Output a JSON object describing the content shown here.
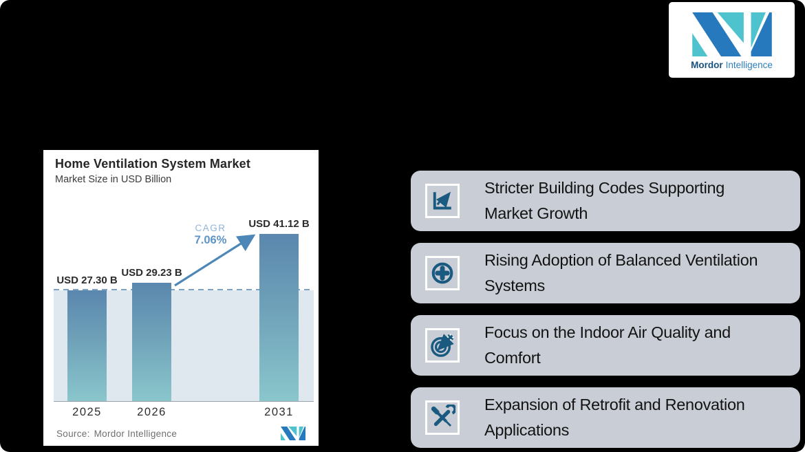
{
  "brand": {
    "name_bold": "Mordor",
    "name_light": "Intelligence",
    "teal": "#4EC3CE",
    "blue": "#2679BC"
  },
  "chart_card": {
    "title": "Home Ventilation System Market",
    "subtitle": "Market Size in USD Billion",
    "cagr_label": "CAGR",
    "cagr_value": "7.06%",
    "source_label": "Source:",
    "source_value": "Mordor Intelligence"
  },
  "chart_data": {
    "type": "bar",
    "title": "Home Ventilation System Market",
    "ylabel": "Market Size in USD Billion",
    "categories": [
      "2025",
      "2026",
      "2031"
    ],
    "values": [
      27.3,
      29.23,
      41.12
    ],
    "value_labels": [
      "USD 27.30 B",
      "USD 29.23 B",
      "USD 41.12 B"
    ],
    "cagr_percent": 7.06,
    "ylim": [
      0,
      44
    ],
    "grid": false,
    "reference_line": {
      "style": "dashed",
      "value": 27.3,
      "color": "#7FA3C4"
    },
    "bar_color_top": "#5A87AE",
    "bar_color_bottom": "#8AC6CC",
    "annotation_arrow": {
      "from": "2026",
      "to": "2031",
      "label": "CAGR 7.06%"
    }
  },
  "drivers": [
    {
      "icon": "line-chart-icon",
      "line1": "Stricter Building Codes Supporting",
      "line2": "Market Growth"
    },
    {
      "icon": "plus-circle-icon",
      "line1": "Rising Adoption of Balanced Ventilation",
      "line2": "Systems"
    },
    {
      "icon": "target-icon",
      "line1": "Focus on the Indoor Air Quality and",
      "line2": "Comfort"
    },
    {
      "icon": "tools-icon",
      "line1": "Expansion of Retrofit and Renovation",
      "line2": "Applications"
    }
  ],
  "colors": {
    "background": "#000000",
    "card_gray": "#C9CED6",
    "icon_blue": "#1B5A80",
    "dashed_line": "#7FA3C4",
    "area_fill": "#DFE7EF",
    "arrow_blue": "#4D87B7",
    "source_gray": "#6E6E6E"
  }
}
